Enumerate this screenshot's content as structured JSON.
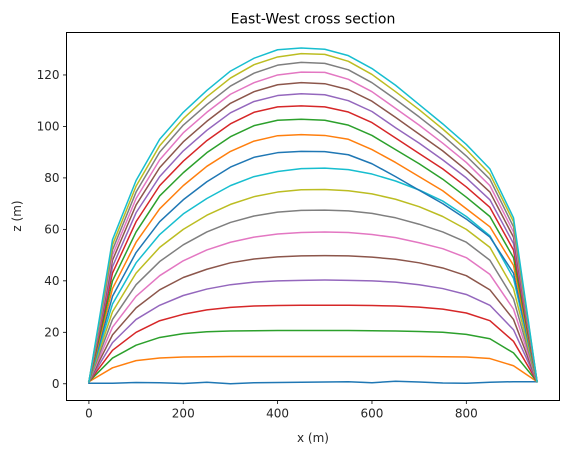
{
  "chart_data": {
    "type": "line",
    "title": "East-West cross section",
    "xlabel": "x (m)",
    "ylabel": "z (m)",
    "xlim": [
      -47.5,
      997.5
    ],
    "ylim": [
      -6.5,
      136.5
    ],
    "xticks": [
      0,
      200,
      400,
      600,
      800
    ],
    "yticks": [
      0,
      20,
      40,
      60,
      80,
      100,
      120
    ],
    "grid": false,
    "legend": "none",
    "x": [
      0,
      50,
      100,
      150,
      200,
      250,
      300,
      350,
      400,
      450,
      500,
      550,
      600,
      650,
      700,
      750,
      800,
      850,
      900,
      950
    ],
    "series": [
      {
        "color": "#1f77b4",
        "values": [
          0.2,
          0.2,
          0.5,
          0.4,
          0.1,
          0.6,
          0.0,
          0.4,
          0.5,
          0.6,
          0.7,
          0.8,
          0.4,
          1.0,
          0.7,
          0.3,
          0.2,
          0.6,
          0.8,
          0.8
        ]
      },
      {
        "color": "#ff7f0e",
        "values": [
          0.8,
          6.2,
          9.0,
          10.0,
          10.4,
          10.5,
          10.6,
          10.6,
          10.6,
          10.6,
          10.6,
          10.6,
          10.6,
          10.6,
          10.6,
          10.5,
          10.4,
          9.8,
          7.0,
          0.8
        ]
      },
      {
        "color": "#2ca02c",
        "values": [
          0.8,
          10.0,
          15.0,
          18.0,
          19.5,
          20.2,
          20.5,
          20.6,
          20.7,
          20.7,
          20.7,
          20.7,
          20.6,
          20.5,
          20.3,
          20.0,
          19.2,
          17.5,
          12.0,
          0.8
        ]
      },
      {
        "color": "#d62728",
        "values": [
          0.8,
          13.0,
          20.0,
          24.5,
          27.0,
          28.7,
          29.7,
          30.2,
          30.4,
          30.5,
          30.5,
          30.5,
          30.4,
          30.2,
          29.8,
          29.0,
          27.5,
          24.5,
          16.5,
          0.8
        ]
      },
      {
        "color": "#9467bd",
        "values": [
          0.8,
          16.0,
          25.0,
          30.5,
          34.3,
          36.8,
          38.5,
          39.5,
          40.0,
          40.2,
          40.3,
          40.2,
          40.0,
          39.5,
          38.5,
          37.0,
          34.7,
          30.5,
          21.0,
          0.8
        ]
      },
      {
        "color": "#8c564b",
        "values": [
          0.8,
          19.0,
          29.5,
          36.5,
          41.3,
          44.5,
          47.0,
          48.5,
          49.3,
          49.7,
          49.8,
          49.7,
          49.2,
          48.4,
          47.0,
          45.0,
          42.0,
          36.5,
          25.0,
          0.8
        ]
      },
      {
        "color": "#e377c2",
        "values": [
          0.8,
          22.0,
          34.0,
          42.0,
          47.8,
          52.0,
          55.0,
          57.0,
          58.2,
          58.8,
          59.0,
          58.8,
          58.0,
          56.8,
          54.8,
          52.5,
          49.0,
          42.5,
          29.0,
          0.8
        ]
      },
      {
        "color": "#7f7f7f",
        "values": [
          0.8,
          25.0,
          38.5,
          47.5,
          54.0,
          59.0,
          62.7,
          65.2,
          66.7,
          67.4,
          67.5,
          67.2,
          66.2,
          64.5,
          62.0,
          59.0,
          55.0,
          48.0,
          33.0,
          0.8
        ]
      },
      {
        "color": "#bcbd22",
        "values": [
          0.8,
          28.0,
          43.0,
          53.0,
          60.0,
          65.5,
          69.7,
          72.7,
          74.5,
          75.4,
          75.5,
          75.0,
          73.8,
          71.7,
          68.8,
          65.0,
          60.0,
          53.0,
          37.0,
          0.8
        ]
      },
      {
        "color": "#17becf",
        "values": [
          0.8,
          31.0,
          47.0,
          58.0,
          66.0,
          72.0,
          77.0,
          80.5,
          82.5,
          83.6,
          83.8,
          83.2,
          81.5,
          78.8,
          75.3,
          71.0,
          65.0,
          57.5,
          41.0,
          0.8
        ]
      },
      {
        "color": "#1f77b4",
        "values": [
          0.8,
          34.0,
          51.0,
          63.0,
          71.5,
          78.5,
          84.2,
          88.0,
          89.8,
          90.3,
          90.2,
          89.0,
          85.5,
          80.5,
          75.2,
          70.0,
          64.0,
          57.0,
          43.0,
          0.8
        ]
      },
      {
        "color": "#ff7f0e",
        "values": [
          0.8,
          37.0,
          55.0,
          68.0,
          77.0,
          84.5,
          90.3,
          94.3,
          96.4,
          96.8,
          96.5,
          95.0,
          91.0,
          86.0,
          80.5,
          75.0,
          68.0,
          61.0,
          46.0,
          0.8
        ]
      },
      {
        "color": "#2ca02c",
        "values": [
          0.8,
          40.0,
          59.0,
          73.0,
          82.0,
          89.8,
          96.0,
          100.3,
          102.4,
          102.8,
          102.4,
          100.5,
          96.5,
          91.0,
          85.5,
          79.5,
          72.5,
          65.0,
          49.0,
          0.8
        ]
      },
      {
        "color": "#d62728",
        "values": [
          0.8,
          43.0,
          63.0,
          77.0,
          86.5,
          94.5,
          101.0,
          105.5,
          107.6,
          108.0,
          107.6,
          105.6,
          101.5,
          95.5,
          89.5,
          83.5,
          76.5,
          68.5,
          52.0,
          0.8
        ]
      },
      {
        "color": "#9467bd",
        "values": [
          0.8,
          45.5,
          66.5,
          80.5,
          90.5,
          98.5,
          105.3,
          109.7,
          112.0,
          112.7,
          112.3,
          110.0,
          105.8,
          99.5,
          93.5,
          87.0,
          80.0,
          71.5,
          54.5,
          0.8
        ]
      },
      {
        "color": "#8c564b",
        "values": [
          0.8,
          48.0,
          69.5,
          84.0,
          94.0,
          102.0,
          109.0,
          113.5,
          116.2,
          117.0,
          116.6,
          114.3,
          109.8,
          103.5,
          97.0,
          90.5,
          83.0,
          74.5,
          57.0,
          0.8
        ]
      },
      {
        "color": "#e377c2",
        "values": [
          0.8,
          50.0,
          72.0,
          87.0,
          97.5,
          105.5,
          112.5,
          117.0,
          120.0,
          121.1,
          121.0,
          118.3,
          113.5,
          107.0,
          100.5,
          93.5,
          86.0,
          77.0,
          59.0,
          0.8
        ]
      },
      {
        "color": "#7f7f7f",
        "values": [
          0.8,
          52.0,
          74.5,
          90.0,
          100.5,
          108.5,
          115.7,
          120.7,
          123.8,
          124.9,
          124.5,
          122.0,
          117.0,
          110.5,
          103.7,
          96.5,
          88.5,
          79.5,
          61.0,
          0.8
        ]
      },
      {
        "color": "#bcbd22",
        "values": [
          0.8,
          54.0,
          76.8,
          92.5,
          103.0,
          111.5,
          118.8,
          124.0,
          127.0,
          128.3,
          128.0,
          125.3,
          120.2,
          113.5,
          106.5,
          99.0,
          91.0,
          81.5,
          63.0,
          0.8
        ]
      },
      {
        "color": "#17becf",
        "values": [
          0.8,
          56.0,
          79.0,
          95.0,
          105.5,
          114.0,
          121.5,
          126.5,
          129.8,
          130.5,
          130.0,
          127.5,
          122.5,
          116.0,
          108.5,
          101.0,
          93.0,
          83.5,
          64.5,
          0.8
        ]
      }
    ]
  }
}
